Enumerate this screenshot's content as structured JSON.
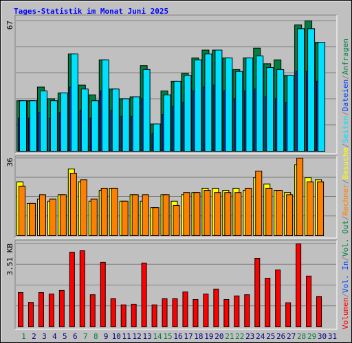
{
  "title": "Tages-Statistik im Monat Juni 2025",
  "categories": [
    "1",
    "2",
    "3",
    "4",
    "5",
    "6",
    "7",
    "8",
    "9",
    "10",
    "11",
    "12",
    "13",
    "14",
    "15",
    "16",
    "17",
    "18",
    "19",
    "20",
    "21",
    "22",
    "23",
    "24",
    "25",
    "26",
    "27",
    "28",
    "29",
    "30",
    "31"
  ],
  "category_colors": [
    "#008040",
    "#000080",
    "#000080",
    "#000080",
    "#000080",
    "#000080",
    "#008040",
    "#008040",
    "#000080",
    "#000080",
    "#000080",
    "#000080",
    "#000080",
    "#008040",
    "#008040",
    "#000080",
    "#000080",
    "#000080",
    "#000080",
    "#000080",
    "#008040",
    "#008040",
    "#000080",
    "#000080",
    "#000080",
    "#000080",
    "#000080",
    "#008040",
    "#008040",
    "#000080",
    "#000080"
  ],
  "legend": [
    {
      "label": "Volumen",
      "color": "#ff0000"
    },
    {
      "label": "Vol. In",
      "color": "#0040ff"
    },
    {
      "label": "Vol. Out",
      "color": "#008040"
    },
    {
      "label": "Rechner",
      "color": "#ff8000"
    },
    {
      "label": "Besuche",
      "color": "#ffff00"
    },
    {
      "label": "Seiten",
      "color": "#00e0ff"
    },
    {
      "label": "Dateien",
      "color": "#0040ff"
    },
    {
      "label": "Anfragen",
      "color": "#008040"
    }
  ],
  "legend_separator": "/",
  "chart_data": [
    {
      "type": "bar",
      "ylim": [
        0,
        67
      ],
      "yticks": [
        67
      ],
      "grid_divisions": 5,
      "series": [
        {
          "color": "#008040",
          "values": [
            26,
            26,
            33,
            27,
            30,
            50,
            34,
            29,
            47,
            32,
            27,
            28,
            44,
            14,
            31,
            36,
            40,
            48,
            52,
            52,
            48,
            42,
            48,
            53,
            45,
            47,
            39,
            65,
            67,
            56,
            0
          ]
        },
        {
          "color": "#0040ff",
          "values": [
            17,
            17,
            20,
            17,
            20,
            33,
            21,
            17,
            31,
            21,
            18,
            18,
            27,
            9,
            19,
            23,
            25,
            31,
            33,
            34,
            31,
            27,
            31,
            32,
            28,
            27,
            25,
            41,
            41,
            36,
            0
          ]
        },
        {
          "color": "#00e0ff",
          "values": [
            26,
            26,
            31,
            26,
            30,
            50,
            32,
            26,
            47,
            32,
            27,
            28,
            42,
            14,
            29,
            36,
            39,
            47,
            50,
            52,
            48,
            41,
            48,
            49,
            43,
            42,
            39,
            63,
            63,
            56,
            0
          ]
        }
      ]
    },
    {
      "type": "bar",
      "ylim": [
        0,
        36
      ],
      "yticks": [
        36
      ],
      "grid_divisions": 4,
      "series": [
        {
          "color": "#ffff00",
          "values": [
            25,
            15,
            17,
            16,
            19,
            31,
            25,
            16,
            21,
            22,
            16,
            19,
            16,
            13,
            19,
            16,
            19,
            20,
            22,
            22,
            21,
            22,
            21,
            27,
            24,
            21,
            20,
            33,
            27,
            26,
            0
          ]
        },
        {
          "color": "#ff8000",
          "values": [
            23,
            15,
            19,
            17,
            19,
            29,
            26,
            17,
            22,
            22,
            16,
            19,
            19,
            13,
            19,
            14,
            20,
            20,
            21,
            20,
            20,
            20,
            22,
            30,
            22,
            21,
            19,
            36,
            25,
            25,
            0
          ]
        }
      ]
    },
    {
      "type": "bar",
      "ylim": [
        0,
        3.51
      ],
      "yticks": [
        {
          "value": 3.51,
          "label": "3.51 KB"
        }
      ],
      "grid_divisions": 4,
      "series": [
        {
          "color": "#ff0000",
          "values": [
            1.45,
            1.04,
            1.45,
            1.39,
            1.54,
            3.16,
            3.22,
            1.36,
            2.73,
            1.19,
            0.93,
            0.96,
            2.7,
            0.93,
            1.19,
            1.19,
            1.48,
            1.16,
            1.39,
            1.6,
            1.16,
            1.31,
            1.36,
            2.9,
            2.06,
            2.41,
            1.02,
            3.51,
            2.15,
            1.28,
            0
          ]
        }
      ]
    }
  ]
}
